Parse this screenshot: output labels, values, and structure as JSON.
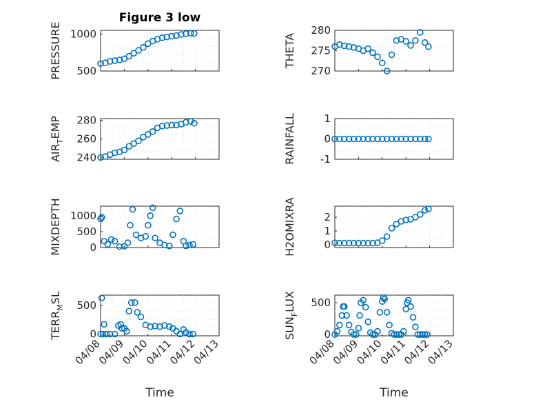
{
  "colors": {
    "marker": "#0072BD",
    "axis": "#262626",
    "grid": "#d9d9d9"
  },
  "chart_data": [
    {
      "type": "scatter",
      "title": "Figure 3 low",
      "ylabel": "PRESSURE",
      "ylim": [
        500,
        1050
      ],
      "yticks": [
        500,
        1000
      ],
      "ytick_labels": [
        "500",
        "1000"
      ],
      "xlim": [
        0,
        5
      ],
      "xticks": [
        0,
        1,
        2,
        3,
        4,
        5
      ],
      "xtick_labels": [],
      "x": [
        0,
        0.2,
        0.4,
        0.6,
        0.8,
        1.0,
        1.2,
        1.4,
        1.6,
        1.8,
        2.0,
        2.2,
        2.4,
        2.6,
        2.8,
        3.0,
        3.2,
        3.4,
        3.6,
        3.8,
        3.95
      ],
      "y": [
        600,
        610,
        630,
        640,
        650,
        665,
        700,
        740,
        780,
        820,
        870,
        905,
        930,
        950,
        960,
        970,
        980,
        995,
        1005,
        1010,
        1008
      ]
    },
    {
      "type": "scatter",
      "ylabel": "THETA",
      "ylim": [
        270,
        280
      ],
      "yticks": [
        270,
        275,
        280
      ],
      "ytick_labels": [
        "270",
        "275",
        "280"
      ],
      "xlim": [
        0,
        5
      ],
      "xticks": [
        0,
        1,
        2,
        3,
        4,
        5
      ],
      "xtick_labels": [],
      "x": [
        0,
        0.2,
        0.4,
        0.6,
        0.8,
        1.0,
        1.2,
        1.4,
        1.6,
        1.8,
        2.0,
        2.2,
        2.4,
        2.6,
        2.8,
        3.0,
        3.2,
        3.4,
        3.6,
        3.8,
        3.95
      ],
      "y": [
        276,
        276.5,
        276.2,
        276,
        275.8,
        275.5,
        275,
        275.5,
        274.5,
        273.5,
        272,
        270,
        274,
        277.5,
        277.8,
        277.3,
        276.3,
        277.5,
        279.5,
        277,
        276
      ]
    },
    {
      "type": "scatter",
      "ylabel": "AIR",
      "ylabel_sub": "T",
      "ylabel_after": "EMP",
      "ylim": [
        238,
        282
      ],
      "yticks": [
        240,
        260,
        280
      ],
      "ytick_labels": [
        "240",
        "260",
        "280"
      ],
      "xlim": [
        0,
        5
      ],
      "xticks": [
        0,
        1,
        2,
        3,
        4,
        5
      ],
      "xtick_labels": [],
      "x": [
        0,
        0.2,
        0.4,
        0.6,
        0.8,
        1.0,
        1.2,
        1.4,
        1.6,
        1.8,
        2.0,
        2.2,
        2.4,
        2.6,
        2.8,
        3.0,
        3.2,
        3.4,
        3.6,
        3.8,
        3.95
      ],
      "y": [
        240,
        241,
        243,
        245,
        246,
        248,
        252,
        255,
        258,
        262,
        265,
        268,
        272,
        274,
        274.5,
        275,
        275,
        276,
        278,
        279,
        277
      ]
    },
    {
      "type": "scatter",
      "ylabel": "RAINFALL",
      "ylim": [
        -1,
        1
      ],
      "yticks": [
        -1,
        0,
        1
      ],
      "ytick_labels": [
        "-1",
        "0",
        "1"
      ],
      "xlim": [
        0,
        5
      ],
      "xticks": [
        0,
        1,
        2,
        3,
        4,
        5
      ],
      "xtick_labels": [],
      "x": [
        0,
        0.2,
        0.4,
        0.6,
        0.8,
        1.0,
        1.2,
        1.4,
        1.6,
        1.8,
        2.0,
        2.2,
        2.4,
        2.6,
        2.8,
        3.0,
        3.2,
        3.4,
        3.6,
        3.8,
        3.95
      ],
      "y": [
        0,
        0,
        0,
        0,
        0,
        0,
        0,
        0,
        0,
        0,
        0,
        0,
        0,
        0,
        0,
        0,
        0,
        0,
        0,
        0,
        0
      ]
    },
    {
      "type": "scatter",
      "ylabel": "MIXDEPTH",
      "ylim": [
        0,
        1300
      ],
      "yticks": [
        0,
        500,
        1000
      ],
      "ytick_labels": [
        "0",
        "500",
        "1000"
      ],
      "xlim": [
        0,
        5
      ],
      "xticks": [
        0,
        1,
        2,
        3,
        4,
        5
      ],
      "xtick_labels": [],
      "x": [
        0,
        0.05,
        0.15,
        0.3,
        0.45,
        0.6,
        0.8,
        1.0,
        1.15,
        1.25,
        1.35,
        1.5,
        1.7,
        1.9,
        2.0,
        2.1,
        2.2,
        2.3,
        2.5,
        2.7,
        2.9,
        3.05,
        3.2,
        3.35,
        3.5,
        3.6,
        3.75,
        3.9
      ],
      "y": [
        900,
        950,
        200,
        100,
        250,
        200,
        30,
        40,
        150,
        700,
        1200,
        400,
        300,
        350,
        700,
        1000,
        1250,
        300,
        150,
        80,
        50,
        400,
        900,
        1150,
        200,
        50,
        80,
        100
      ]
    },
    {
      "type": "scatter",
      "ylabel": "H2OMIXRA",
      "ylim": [
        -0.2,
        2.8
      ],
      "yticks": [
        0,
        1,
        2
      ],
      "ytick_labels": [
        "0",
        "1",
        "2"
      ],
      "xlim": [
        0,
        5
      ],
      "xticks": [
        0,
        1,
        2,
        3,
        4,
        5
      ],
      "xtick_labels": [],
      "x": [
        0,
        0.2,
        0.4,
        0.6,
        0.8,
        1.0,
        1.2,
        1.4,
        1.6,
        1.8,
        2.0,
        2.2,
        2.4,
        2.6,
        2.8,
        3.0,
        3.2,
        3.4,
        3.6,
        3.8,
        3.95
      ],
      "y": [
        0.15,
        0.12,
        0.12,
        0.12,
        0.12,
        0.12,
        0.12,
        0.12,
        0.12,
        0.15,
        0.3,
        0.6,
        1.2,
        1.5,
        1.7,
        1.8,
        1.85,
        2.0,
        2.2,
        2.5,
        2.6
      ]
    },
    {
      "type": "scatter",
      "ylabel": "TERR",
      "ylabel_sub": "M",
      "ylabel_after": "SL",
      "ylim": [
        -30,
        680
      ],
      "yticks": [
        0,
        500
      ],
      "ytick_labels": [
        "0",
        "500"
      ],
      "xlim": [
        0,
        5
      ],
      "xticks": [
        0,
        1,
        2,
        3,
        4,
        5
      ],
      "xtick_labels": [
        "04/08",
        "04/09",
        "04/10",
        "04/11",
        "04/12",
        "04/13"
      ],
      "xlabel": "Time",
      "x": [
        0,
        0.05,
        0.1,
        0.15,
        0.25,
        0.4,
        0.6,
        0.75,
        0.85,
        0.9,
        1.0,
        1.1,
        1.2,
        1.3,
        1.45,
        1.55,
        1.7,
        1.9,
        2.1,
        2.3,
        2.5,
        2.7,
        2.9,
        3.05,
        3.2,
        3.35,
        3.5,
        3.6,
        3.75,
        3.9
      ],
      "y": [
        0,
        630,
        0,
        170,
        0,
        0,
        0,
        150,
        170,
        100,
        100,
        50,
        400,
        550,
        550,
        380,
        300,
        160,
        130,
        140,
        130,
        150,
        130,
        100,
        50,
        0,
        80,
        30,
        0,
        0
      ]
    },
    {
      "type": "scatter",
      "ylabel": "SUN",
      "ylabel_sub": "F",
      "ylabel_after": "LUX",
      "ylim": [
        -20,
        620
      ],
      "yticks": [
        0,
        500
      ],
      "ytick_labels": [
        "0",
        "500"
      ],
      "xlim": [
        0,
        5
      ],
      "xticks": [
        0,
        1,
        2,
        3,
        4,
        5
      ],
      "xtick_labels": [
        "04/08",
        "04/09",
        "04/10",
        "04/11",
        "04/12",
        "04/13"
      ],
      "xlabel": "Time",
      "x": [
        0,
        0.1,
        0.2,
        0.3,
        0.35,
        0.4,
        0.5,
        0.6,
        0.7,
        0.8,
        0.9,
        1.0,
        1.05,
        1.1,
        1.2,
        1.3,
        1.4,
        1.5,
        1.6,
        1.7,
        1.8,
        1.9,
        2.0,
        2.05,
        2.1,
        2.2,
        2.3,
        2.4,
        2.5,
        2.6,
        2.7,
        2.8,
        2.9,
        3.0,
        3.05,
        3.1,
        3.2,
        3.3,
        3.4,
        3.5,
        3.6,
        3.7,
        3.8,
        3.9
      ],
      "y": [
        0,
        50,
        150,
        300,
        440,
        440,
        300,
        150,
        40,
        0,
        0,
        100,
        300,
        500,
        540,
        430,
        200,
        30,
        0,
        0,
        50,
        350,
        520,
        580,
        560,
        350,
        150,
        20,
        0,
        0,
        0,
        0,
        50,
        400,
        500,
        540,
        440,
        270,
        120,
        0,
        0,
        0,
        0,
        0
      ]
    }
  ]
}
